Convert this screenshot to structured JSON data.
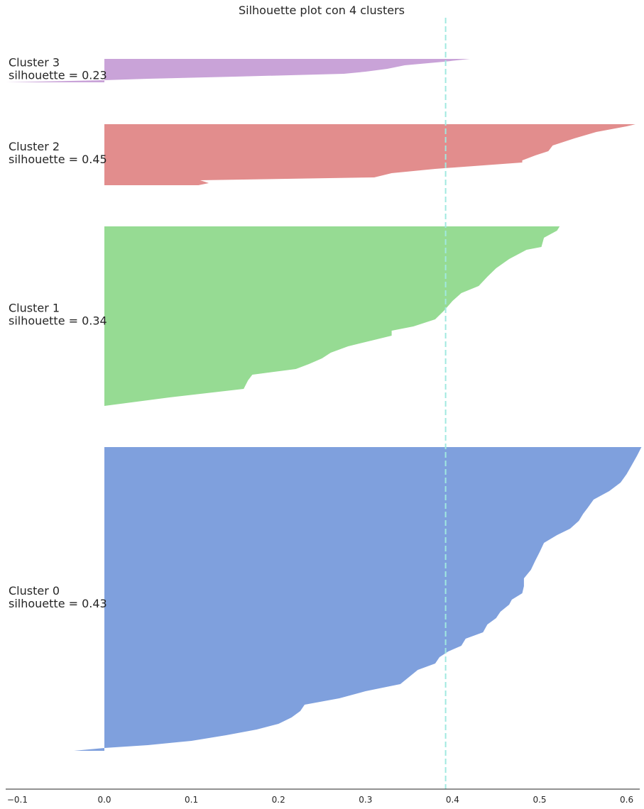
{
  "chart_data": {
    "type": "area",
    "title": "Silhouette plot con 4 clusters",
    "xlabel": "",
    "ylabel": "",
    "xlim": [
      -0.11,
      0.617
    ],
    "xticks": [
      "−0.1",
      "0.0",
      "0.1",
      "0.2",
      "0.3",
      "0.4",
      "0.5",
      "0.6"
    ],
    "grid": false,
    "average_silhouette": 0.392,
    "average_line_color": "#a1e9e0",
    "clusters": [
      {
        "id": 3,
        "name": "Cluster 3",
        "label_line1": "Cluster 3",
        "label_line2": "silhouette = 0.23",
        "color": "#c9a3d8",
        "y_top": 83,
        "y_bottom": 116,
        "profile": [
          [
            83,
            0.42
          ],
          [
            87,
            0.39
          ],
          [
            92,
            0.345
          ],
          [
            97,
            0.325
          ],
          [
            101,
            0.3
          ],
          [
            104,
            0.275
          ],
          [
            108,
            0.15
          ],
          [
            111,
            0.05
          ],
          [
            113,
            0.0
          ],
          [
            116,
            -0.113
          ]
        ]
      },
      {
        "id": 2,
        "name": "Cluster 2",
        "label_line1": "Cluster 2",
        "label_line2": "silhouette = 0.45",
        "color": "#e28d8d",
        "y_top": 175,
        "y_bottom": 261,
        "profile": [
          [
            175,
            0.61
          ],
          [
            178,
            0.6
          ],
          [
            186,
            0.565
          ],
          [
            195,
            0.54
          ],
          [
            205,
            0.515
          ],
          [
            213,
            0.51
          ],
          [
            219,
            0.495
          ],
          [
            226,
            0.48
          ],
          [
            229,
            0.48
          ],
          [
            238,
            0.38
          ],
          [
            244,
            0.33
          ],
          [
            250,
            0.31
          ],
          [
            254,
            0.11
          ],
          [
            258,
            0.12
          ],
          [
            261,
            0.108
          ]
        ]
      },
      {
        "id": 1,
        "name": "Cluster 1",
        "label_line1": "Cluster 1",
        "label_line2": "silhouette = 0.34",
        "color": "#96db93",
        "y_top": 319,
        "y_bottom": 572,
        "profile": [
          [
            319,
            0.523
          ],
          [
            325,
            0.52
          ],
          [
            335,
            0.505
          ],
          [
            348,
            0.502
          ],
          [
            352,
            0.485
          ],
          [
            365,
            0.465
          ],
          [
            378,
            0.45
          ],
          [
            390,
            0.44
          ],
          [
            403,
            0.43
          ],
          [
            413,
            0.41
          ],
          [
            424,
            0.4
          ],
          [
            438,
            0.39
          ],
          [
            450,
            0.38
          ],
          [
            460,
            0.355
          ],
          [
            466,
            0.33
          ],
          [
            473,
            0.33
          ],
          [
            479,
            0.31
          ],
          [
            488,
            0.28
          ],
          [
            497,
            0.26
          ],
          [
            505,
            0.25
          ],
          [
            513,
            0.235
          ],
          [
            520,
            0.22
          ],
          [
            528,
            0.17
          ],
          [
            536,
            0.165
          ],
          [
            548,
            0.16
          ],
          [
            560,
            0.075
          ],
          [
            572,
            0.0
          ]
        ]
      },
      {
        "id": 0,
        "name": "Cluster 0",
        "label_line1": "Cluster 0",
        "label_line2": "silhouette = 0.43",
        "color": "#7fa0dd",
        "y_top": 630,
        "y_bottom": 1058,
        "profile": [
          [
            630,
            0.617
          ],
          [
            642,
            0.612
          ],
          [
            655,
            0.606
          ],
          [
            668,
            0.6
          ],
          [
            680,
            0.593
          ],
          [
            692,
            0.58
          ],
          [
            704,
            0.562
          ],
          [
            716,
            0.555
          ],
          [
            724,
            0.55
          ],
          [
            734,
            0.545
          ],
          [
            745,
            0.535
          ],
          [
            754,
            0.52
          ],
          [
            765,
            0.505
          ],
          [
            778,
            0.5
          ],
          [
            790,
            0.495
          ],
          [
            803,
            0.49
          ],
          [
            815,
            0.482
          ],
          [
            826,
            0.482
          ],
          [
            836,
            0.48
          ],
          [
            845,
            0.468
          ],
          [
            852,
            0.465
          ],
          [
            862,
            0.455
          ],
          [
            871,
            0.45
          ],
          [
            880,
            0.44
          ],
          [
            891,
            0.435
          ],
          [
            900,
            0.415
          ],
          [
            910,
            0.41
          ],
          [
            918,
            0.395
          ],
          [
            926,
            0.385
          ],
          [
            935,
            0.38
          ],
          [
            944,
            0.36
          ],
          [
            954,
            0.35
          ],
          [
            964,
            0.34
          ],
          [
            974,
            0.3
          ],
          [
            984,
            0.27
          ],
          [
            993,
            0.23
          ],
          [
            1002,
            0.225
          ],
          [
            1011,
            0.215
          ],
          [
            1020,
            0.2
          ],
          [
            1028,
            0.175
          ],
          [
            1036,
            0.14
          ],
          [
            1044,
            0.1
          ],
          [
            1050,
            0.05
          ],
          [
            1054,
            0.0
          ],
          [
            1058,
            -0.035
          ]
        ]
      }
    ]
  }
}
